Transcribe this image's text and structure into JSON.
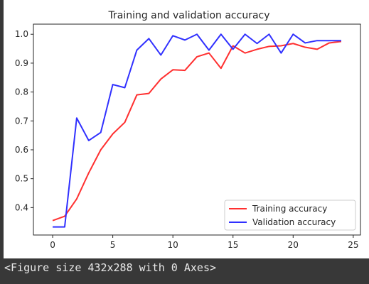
{
  "caption": "<Figure size 432x288 with 0 Axes>",
  "chart_data": {
    "type": "line",
    "title": "Training and validation accuracy",
    "xlabel": "",
    "ylabel": "",
    "xlim": [
      -1.6,
      25.6
    ],
    "ylim": [
      0.305,
      1.035
    ],
    "xticks": [
      0,
      5,
      10,
      15,
      20,
      25
    ],
    "yticks": [
      0.4,
      0.5,
      0.6,
      0.7,
      0.8,
      0.9,
      1.0
    ],
    "ytick_labels": [
      "0.4",
      "0.5",
      "0.6",
      "0.7",
      "0.8",
      "0.9",
      "1.0"
    ],
    "grid": false,
    "legend_position": "lower-right",
    "x": [
      0,
      1,
      2,
      3,
      4,
      5,
      6,
      7,
      8,
      9,
      10,
      11,
      12,
      13,
      14,
      15,
      16,
      17,
      18,
      19,
      20,
      21,
      22,
      23,
      24
    ],
    "series": [
      {
        "name": "Training accuracy",
        "color": "#ff3030",
        "values": [
          0.355,
          0.37,
          0.43,
          0.52,
          0.6,
          0.655,
          0.695,
          0.79,
          0.795,
          0.845,
          0.877,
          0.875,
          0.922,
          0.935,
          0.882,
          0.96,
          0.935,
          0.948,
          0.958,
          0.96,
          0.968,
          0.955,
          0.948,
          0.97,
          0.975
        ]
      },
      {
        "name": "Validation accuracy",
        "color": "#3030ff",
        "values": [
          0.333,
          0.333,
          0.71,
          0.632,
          0.66,
          0.826,
          0.815,
          0.945,
          0.985,
          0.928,
          0.995,
          0.98,
          1.0,
          0.945,
          1.0,
          0.948,
          1.0,
          0.968,
          1.0,
          0.935,
          1.0,
          0.97,
          0.978,
          0.978,
          0.978
        ]
      }
    ]
  }
}
